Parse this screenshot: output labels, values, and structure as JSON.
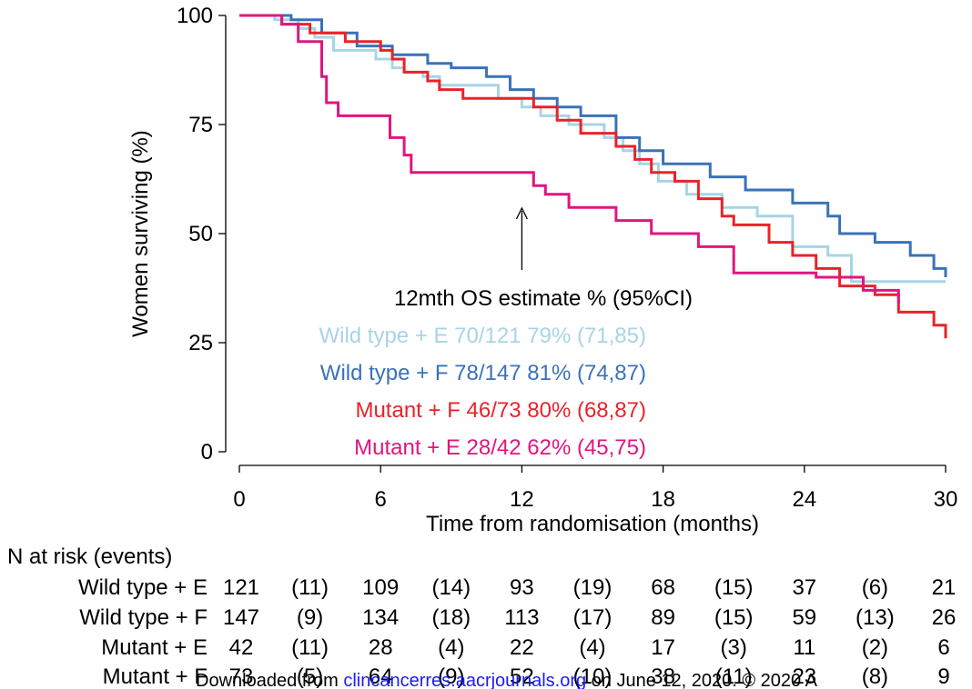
{
  "chart_data": {
    "type": "line",
    "subtype": "kaplan-meier",
    "title": "",
    "xlabel": "Time from randomisation (months)",
    "ylabel": "Women surviving (%)",
    "xlim": [
      0,
      30
    ],
    "ylim": [
      0,
      100
    ],
    "xticks": [
      0,
      6,
      12,
      18,
      24,
      30
    ],
    "yticks": [
      0,
      25,
      50,
      75,
      100
    ],
    "grid": false,
    "series": [
      {
        "name": "Wild type + E",
        "color": "#a8d4e6",
        "points": [
          [
            0,
            100
          ],
          [
            1.5,
            100
          ],
          [
            1.5,
            99
          ],
          [
            2.5,
            99
          ],
          [
            2.5,
            97
          ],
          [
            3.2,
            97
          ],
          [
            3.2,
            95
          ],
          [
            4,
            95
          ],
          [
            4,
            92
          ],
          [
            5.8,
            92
          ],
          [
            5.8,
            90
          ],
          [
            6.5,
            90
          ],
          [
            6.5,
            88
          ],
          [
            7,
            88
          ],
          [
            7,
            87
          ],
          [
            7.8,
            87
          ],
          [
            7.8,
            86
          ],
          [
            8.5,
            86
          ],
          [
            8.5,
            84
          ],
          [
            11,
            84
          ],
          [
            11,
            81
          ],
          [
            12,
            81
          ],
          [
            12,
            79
          ],
          [
            12.8,
            79
          ],
          [
            12.8,
            77
          ],
          [
            14,
            77
          ],
          [
            14,
            75
          ],
          [
            15.5,
            75
          ],
          [
            15.5,
            72
          ],
          [
            16.3,
            72
          ],
          [
            16.3,
            69
          ],
          [
            17,
            69
          ],
          [
            17,
            66
          ],
          [
            17.8,
            66
          ],
          [
            17.8,
            62
          ],
          [
            19,
            62
          ],
          [
            19,
            59
          ],
          [
            20.5,
            59
          ],
          [
            20.5,
            56
          ],
          [
            22,
            56
          ],
          [
            22,
            54
          ],
          [
            23.5,
            54
          ],
          [
            23.5,
            47
          ],
          [
            25,
            47
          ],
          [
            25,
            45
          ],
          [
            26,
            45
          ],
          [
            26,
            39
          ],
          [
            30,
            39
          ]
        ]
      },
      {
        "name": "Wild type + F",
        "color": "#3a72b8",
        "points": [
          [
            0,
            100
          ],
          [
            2.2,
            100
          ],
          [
            2.2,
            99
          ],
          [
            3.5,
            99
          ],
          [
            3.5,
            96
          ],
          [
            5,
            96
          ],
          [
            5,
            93
          ],
          [
            6.5,
            93
          ],
          [
            6.5,
            91
          ],
          [
            8,
            91
          ],
          [
            8,
            89
          ],
          [
            9,
            89
          ],
          [
            9,
            88
          ],
          [
            10.5,
            88
          ],
          [
            10.5,
            86
          ],
          [
            11.5,
            86
          ],
          [
            11.5,
            83
          ],
          [
            12.5,
            83
          ],
          [
            12.5,
            81
          ],
          [
            13.5,
            81
          ],
          [
            13.5,
            79
          ],
          [
            14.5,
            79
          ],
          [
            14.5,
            77
          ],
          [
            16,
            77
          ],
          [
            16,
            72
          ],
          [
            17,
            72
          ],
          [
            17,
            69
          ],
          [
            18,
            69
          ],
          [
            18,
            66
          ],
          [
            20,
            66
          ],
          [
            20,
            63
          ],
          [
            21.5,
            63
          ],
          [
            21.5,
            60
          ],
          [
            23.5,
            60
          ],
          [
            23.5,
            57
          ],
          [
            25,
            57
          ],
          [
            25,
            54
          ],
          [
            25.5,
            54
          ],
          [
            25.5,
            50
          ],
          [
            27,
            50
          ],
          [
            27,
            48
          ],
          [
            28.5,
            48
          ],
          [
            28.5,
            45
          ],
          [
            29.5,
            45
          ],
          [
            29.5,
            42
          ],
          [
            30,
            42
          ],
          [
            30,
            40
          ]
        ]
      },
      {
        "name": "Mutant + F",
        "color": "#e8232a",
        "points": [
          [
            0,
            100
          ],
          [
            1.8,
            100
          ],
          [
            1.8,
            98
          ],
          [
            3,
            98
          ],
          [
            3,
            96
          ],
          [
            4.5,
            96
          ],
          [
            4.5,
            94
          ],
          [
            6,
            94
          ],
          [
            6,
            92
          ],
          [
            6.5,
            92
          ],
          [
            6.5,
            90
          ],
          [
            7,
            90
          ],
          [
            7,
            87
          ],
          [
            8,
            87
          ],
          [
            8,
            85
          ],
          [
            8.5,
            85
          ],
          [
            8.5,
            83
          ],
          [
            9.5,
            83
          ],
          [
            9.5,
            81
          ],
          [
            12.5,
            81
          ],
          [
            12.5,
            79
          ],
          [
            13.5,
            79
          ],
          [
            13.5,
            76
          ],
          [
            14.5,
            76
          ],
          [
            14.5,
            73
          ],
          [
            16,
            73
          ],
          [
            16,
            70
          ],
          [
            16.8,
            70
          ],
          [
            16.8,
            67
          ],
          [
            17.5,
            67
          ],
          [
            17.5,
            64
          ],
          [
            18.5,
            64
          ],
          [
            18.5,
            62
          ],
          [
            19.5,
            62
          ],
          [
            19.5,
            58
          ],
          [
            20.5,
            58
          ],
          [
            20.5,
            54
          ],
          [
            21,
            54
          ],
          [
            21,
            52
          ],
          [
            22.5,
            52
          ],
          [
            22.5,
            48
          ],
          [
            23.5,
            48
          ],
          [
            23.5,
            45
          ],
          [
            24.5,
            45
          ],
          [
            24.5,
            42
          ],
          [
            25.5,
            42
          ],
          [
            25.5,
            38
          ],
          [
            27,
            38
          ],
          [
            27,
            36
          ],
          [
            28,
            36
          ],
          [
            28,
            32
          ],
          [
            29.5,
            32
          ],
          [
            29.5,
            29
          ],
          [
            30,
            29
          ],
          [
            30,
            26
          ]
        ]
      },
      {
        "name": "Mutant + E",
        "color": "#e0157f",
        "points": [
          [
            0,
            100
          ],
          [
            1.8,
            100
          ],
          [
            1.8,
            98
          ],
          [
            2.5,
            98
          ],
          [
            2.5,
            94
          ],
          [
            3.5,
            94
          ],
          [
            3.5,
            86
          ],
          [
            3.7,
            86
          ],
          [
            3.7,
            80
          ],
          [
            4.2,
            80
          ],
          [
            4.2,
            77
          ],
          [
            6.4,
            77
          ],
          [
            6.4,
            72
          ],
          [
            7,
            72
          ],
          [
            7,
            68
          ],
          [
            7.3,
            68
          ],
          [
            7.3,
            64
          ],
          [
            12.5,
            64
          ],
          [
            12.5,
            61
          ],
          [
            13,
            61
          ],
          [
            13,
            59
          ],
          [
            14,
            59
          ],
          [
            14,
            56
          ],
          [
            16,
            56
          ],
          [
            16,
            53
          ],
          [
            17.5,
            53
          ],
          [
            17.5,
            50
          ],
          [
            19.5,
            50
          ],
          [
            19.5,
            47
          ],
          [
            21,
            47
          ],
          [
            21,
            41
          ],
          [
            24.5,
            41
          ],
          [
            24.5,
            40
          ],
          [
            26.5,
            40
          ],
          [
            26.5,
            37
          ],
          [
            28,
            37
          ],
          [
            28,
            34
          ]
        ]
      }
    ],
    "annotation": {
      "text": "12mth OS estimate % (95%CI)",
      "arrow_x": 12
    },
    "estimates": [
      {
        "text": "Wild type + E 70/121 79% (71,85)",
        "color": "#a8d4e6"
      },
      {
        "text": "Wild type + F 78/147 81% (74,87)",
        "color": "#3a72b8"
      },
      {
        "text": "Mutant + F 46/73 80% (68,87)",
        "color": "#e8232a"
      },
      {
        "text": "Mutant + E 28/42 62% (45,75)",
        "color": "#e0157f"
      }
    ],
    "risk_table": {
      "title": "N at risk (events)",
      "rows": [
        {
          "label": "Wild type + E",
          "cells": [
            "121",
            "(11)",
            "109",
            "(14)",
            "93",
            "(19)",
            "68",
            "(15)",
            "37",
            "(6)",
            "21"
          ]
        },
        {
          "label": "Wild type + F",
          "cells": [
            "147",
            "(9)",
            "134",
            "(18)",
            "113",
            "(17)",
            "89",
            "(15)",
            "59",
            "(13)",
            "26"
          ]
        },
        {
          "label": "Mutant + E",
          "cells": [
            "42",
            "(11)",
            "28",
            "(4)",
            "22",
            "(4)",
            "17",
            "(3)",
            "11",
            "(2)",
            "6"
          ]
        },
        {
          "label": "Mutant + F",
          "cells": [
            "73",
            "(5)",
            "64",
            "(9)",
            "52",
            "(10)",
            "38",
            "(11)",
            "23",
            "(8)",
            "9"
          ]
        }
      ]
    }
  },
  "watermark": {
    "prefix": "Downloaded from ",
    "link": "clincancerres.aacrjournals.org",
    "suffix": " on June 12, 2020. © 2020 A"
  }
}
